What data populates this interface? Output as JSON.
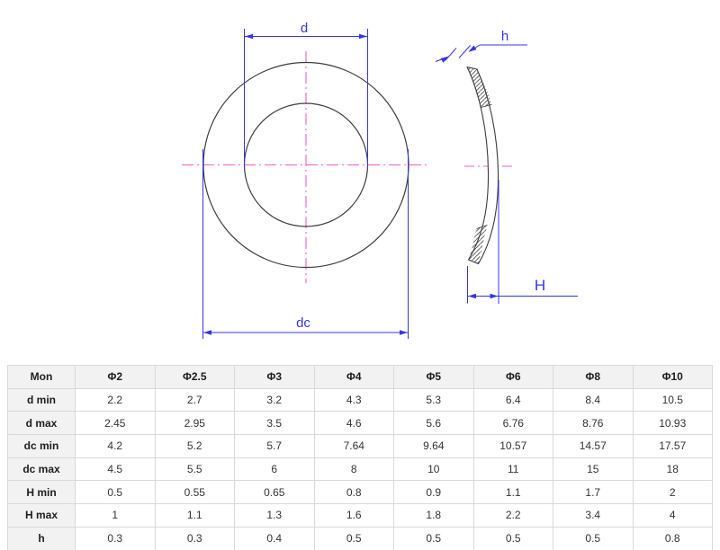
{
  "drawing": {
    "front_view": {
      "inner_diameter_label": "d",
      "outer_diameter_label": "dc"
    },
    "side_view": {
      "thickness_label": "h",
      "wave_height_label": "H"
    },
    "colors": {
      "dimension_blue": "#3535e8",
      "centerline_pink": "#f45fc8",
      "outline_dark": "#3c3c3c"
    }
  },
  "table": {
    "header": [
      "Mon",
      "Φ2",
      "Φ2.5",
      "Φ3",
      "Φ4",
      "Φ5",
      "Φ6",
      "Φ8",
      "Φ10"
    ],
    "rows": [
      {
        "label": "d min",
        "values": [
          "2.2",
          "2.7",
          "3.2",
          "4.3",
          "5.3",
          "6.4",
          "8.4",
          "10.5"
        ]
      },
      {
        "label": "d max",
        "values": [
          "2.45",
          "2.95",
          "3.5",
          "4.6",
          "5.6",
          "6.76",
          "8.76",
          "10.93"
        ]
      },
      {
        "label": "dc min",
        "values": [
          "4.2",
          "5.2",
          "5.7",
          "7.64",
          "9.64",
          "10.57",
          "14.57",
          "17.57"
        ]
      },
      {
        "label": "dc max",
        "values": [
          "4.5",
          "5.5",
          "6",
          "8",
          "10",
          "11",
          "15",
          "18"
        ]
      },
      {
        "label": "H min",
        "values": [
          "0.5",
          "0.55",
          "0.65",
          "0.8",
          "0.9",
          "1.1",
          "1.7",
          "2"
        ]
      },
      {
        "label": "H max",
        "values": [
          "1",
          "1.1",
          "1.3",
          "1.6",
          "1.8",
          "2.2",
          "3.4",
          "4"
        ]
      },
      {
        "label": "h",
        "values": [
          "0.3",
          "0.3",
          "0.4",
          "0.5",
          "0.5",
          "0.5",
          "0.5",
          "0.8"
        ]
      }
    ]
  }
}
